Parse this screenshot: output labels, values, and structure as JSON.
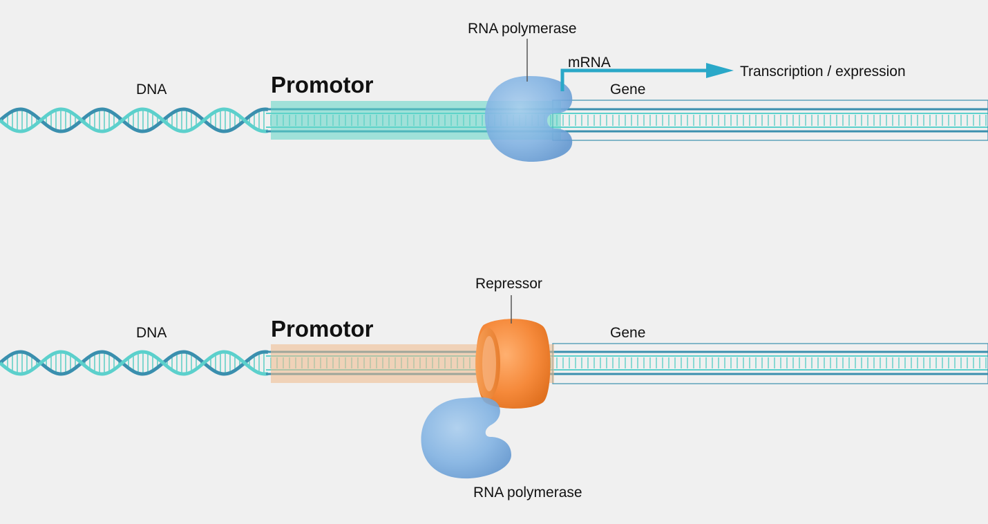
{
  "colors": {
    "background": "#f0f0f0",
    "dna_strand": "#5cd0cc",
    "dna_strand_dark": "#3a8fae",
    "promotor_active": "#7fdcd2",
    "promotor_repressed": "#f2c9a0",
    "polymerase": "#7fb4e6",
    "repressor": "#f28a3a",
    "mrna_arrow": "#2aa8c8",
    "text": "#111111"
  },
  "panels": {
    "top": {
      "dna_label": "DNA",
      "promotor_label": "Promotor",
      "polymerase_label": "RNA polymerase",
      "mrna_label": "mRNA",
      "outcome_label": "Transcription / expression",
      "gene_label": "Gene"
    },
    "bottom": {
      "dna_label": "DNA",
      "promotor_label": "Promotor",
      "repressor_label": "Repressor",
      "gene_label": "Gene",
      "polymerase_label": "RNA polymerase"
    }
  }
}
